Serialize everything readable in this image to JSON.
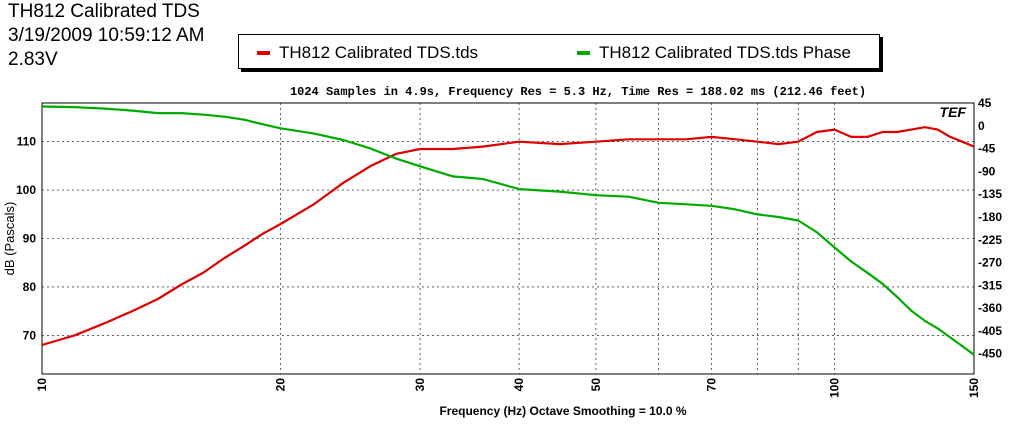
{
  "header": {
    "line1": "TH812 Calibrated TDS",
    "line2": "3/19/2009 10:59:12 AM",
    "line3": "2.83V"
  },
  "info_line": "1024 Samples in 4.9s, Frequency Res = 5.3 Hz, Time Res = 188.02 ms (212.46 feet)",
  "logo_text": "TEF",
  "chart_data": {
    "type": "line",
    "xscale": "log",
    "xlim": [
      10,
      150
    ],
    "x_ticks": [
      10,
      20,
      30,
      40,
      50,
      70,
      100,
      150
    ],
    "ylim": [
      62,
      118
    ],
    "y_ticks": [
      70,
      80,
      90,
      100,
      110
    ],
    "y2lim": [
      -490,
      45
    ],
    "y2_ticks": [
      45,
      0,
      -45,
      -90,
      -135,
      -180,
      -225,
      -270,
      -315,
      -360,
      -405,
      -450
    ],
    "xlabel": "Frequency (Hz) Octave Smoothing = 10.0 %",
    "ylabel": "dB (Pascals)",
    "grid": true,
    "legend_position": "top",
    "series": [
      {
        "name": "TH812 Calibrated TDS.tds",
        "color": "#dd0000",
        "axis": "left",
        "x": [
          10,
          11,
          12,
          13,
          14,
          15,
          16,
          17,
          18,
          19,
          20,
          22,
          24,
          26,
          28,
          30,
          33,
          36,
          40,
          45,
          50,
          55,
          60,
          65,
          70,
          75,
          80,
          85,
          90,
          95,
          100,
          105,
          110,
          115,
          120,
          125,
          130,
          135,
          140,
          145,
          150
        ],
        "y": [
          68,
          70,
          72.5,
          75,
          77.5,
          80.5,
          83,
          86,
          88.5,
          91,
          93,
          97,
          101.5,
          105,
          107.5,
          108.5,
          108.5,
          109,
          110,
          109.5,
          110,
          110.5,
          110.5,
          110.5,
          111,
          110.5,
          110,
          109.5,
          110,
          112,
          112.5,
          111,
          111,
          112,
          112,
          112.5,
          113,
          112.5,
          111,
          110,
          109
        ]
      },
      {
        "name": "TH812 Calibrated TDS.tds Phase",
        "color": "#00aa00",
        "axis": "right",
        "x": [
          10,
          11,
          12,
          13,
          14,
          15,
          16,
          17,
          18,
          19,
          20,
          22,
          24,
          26,
          28,
          30,
          33,
          36,
          40,
          45,
          50,
          55,
          60,
          65,
          70,
          75,
          80,
          85,
          90,
          95,
          100,
          105,
          110,
          115,
          120,
          125,
          130,
          135,
          140,
          145,
          150
        ],
        "y": [
          38,
          37,
          34,
          30,
          25,
          25,
          22,
          18,
          12,
          3,
          -5,
          -15,
          -28,
          -45,
          -65,
          -80,
          -100,
          -105,
          -125,
          -130,
          -137,
          -140,
          -152,
          -155,
          -158,
          -165,
          -175,
          -180,
          -187,
          -210,
          -240,
          -268,
          -290,
          -312,
          -338,
          -365,
          -385,
          -400,
          -418,
          -435,
          -452
        ]
      }
    ]
  }
}
